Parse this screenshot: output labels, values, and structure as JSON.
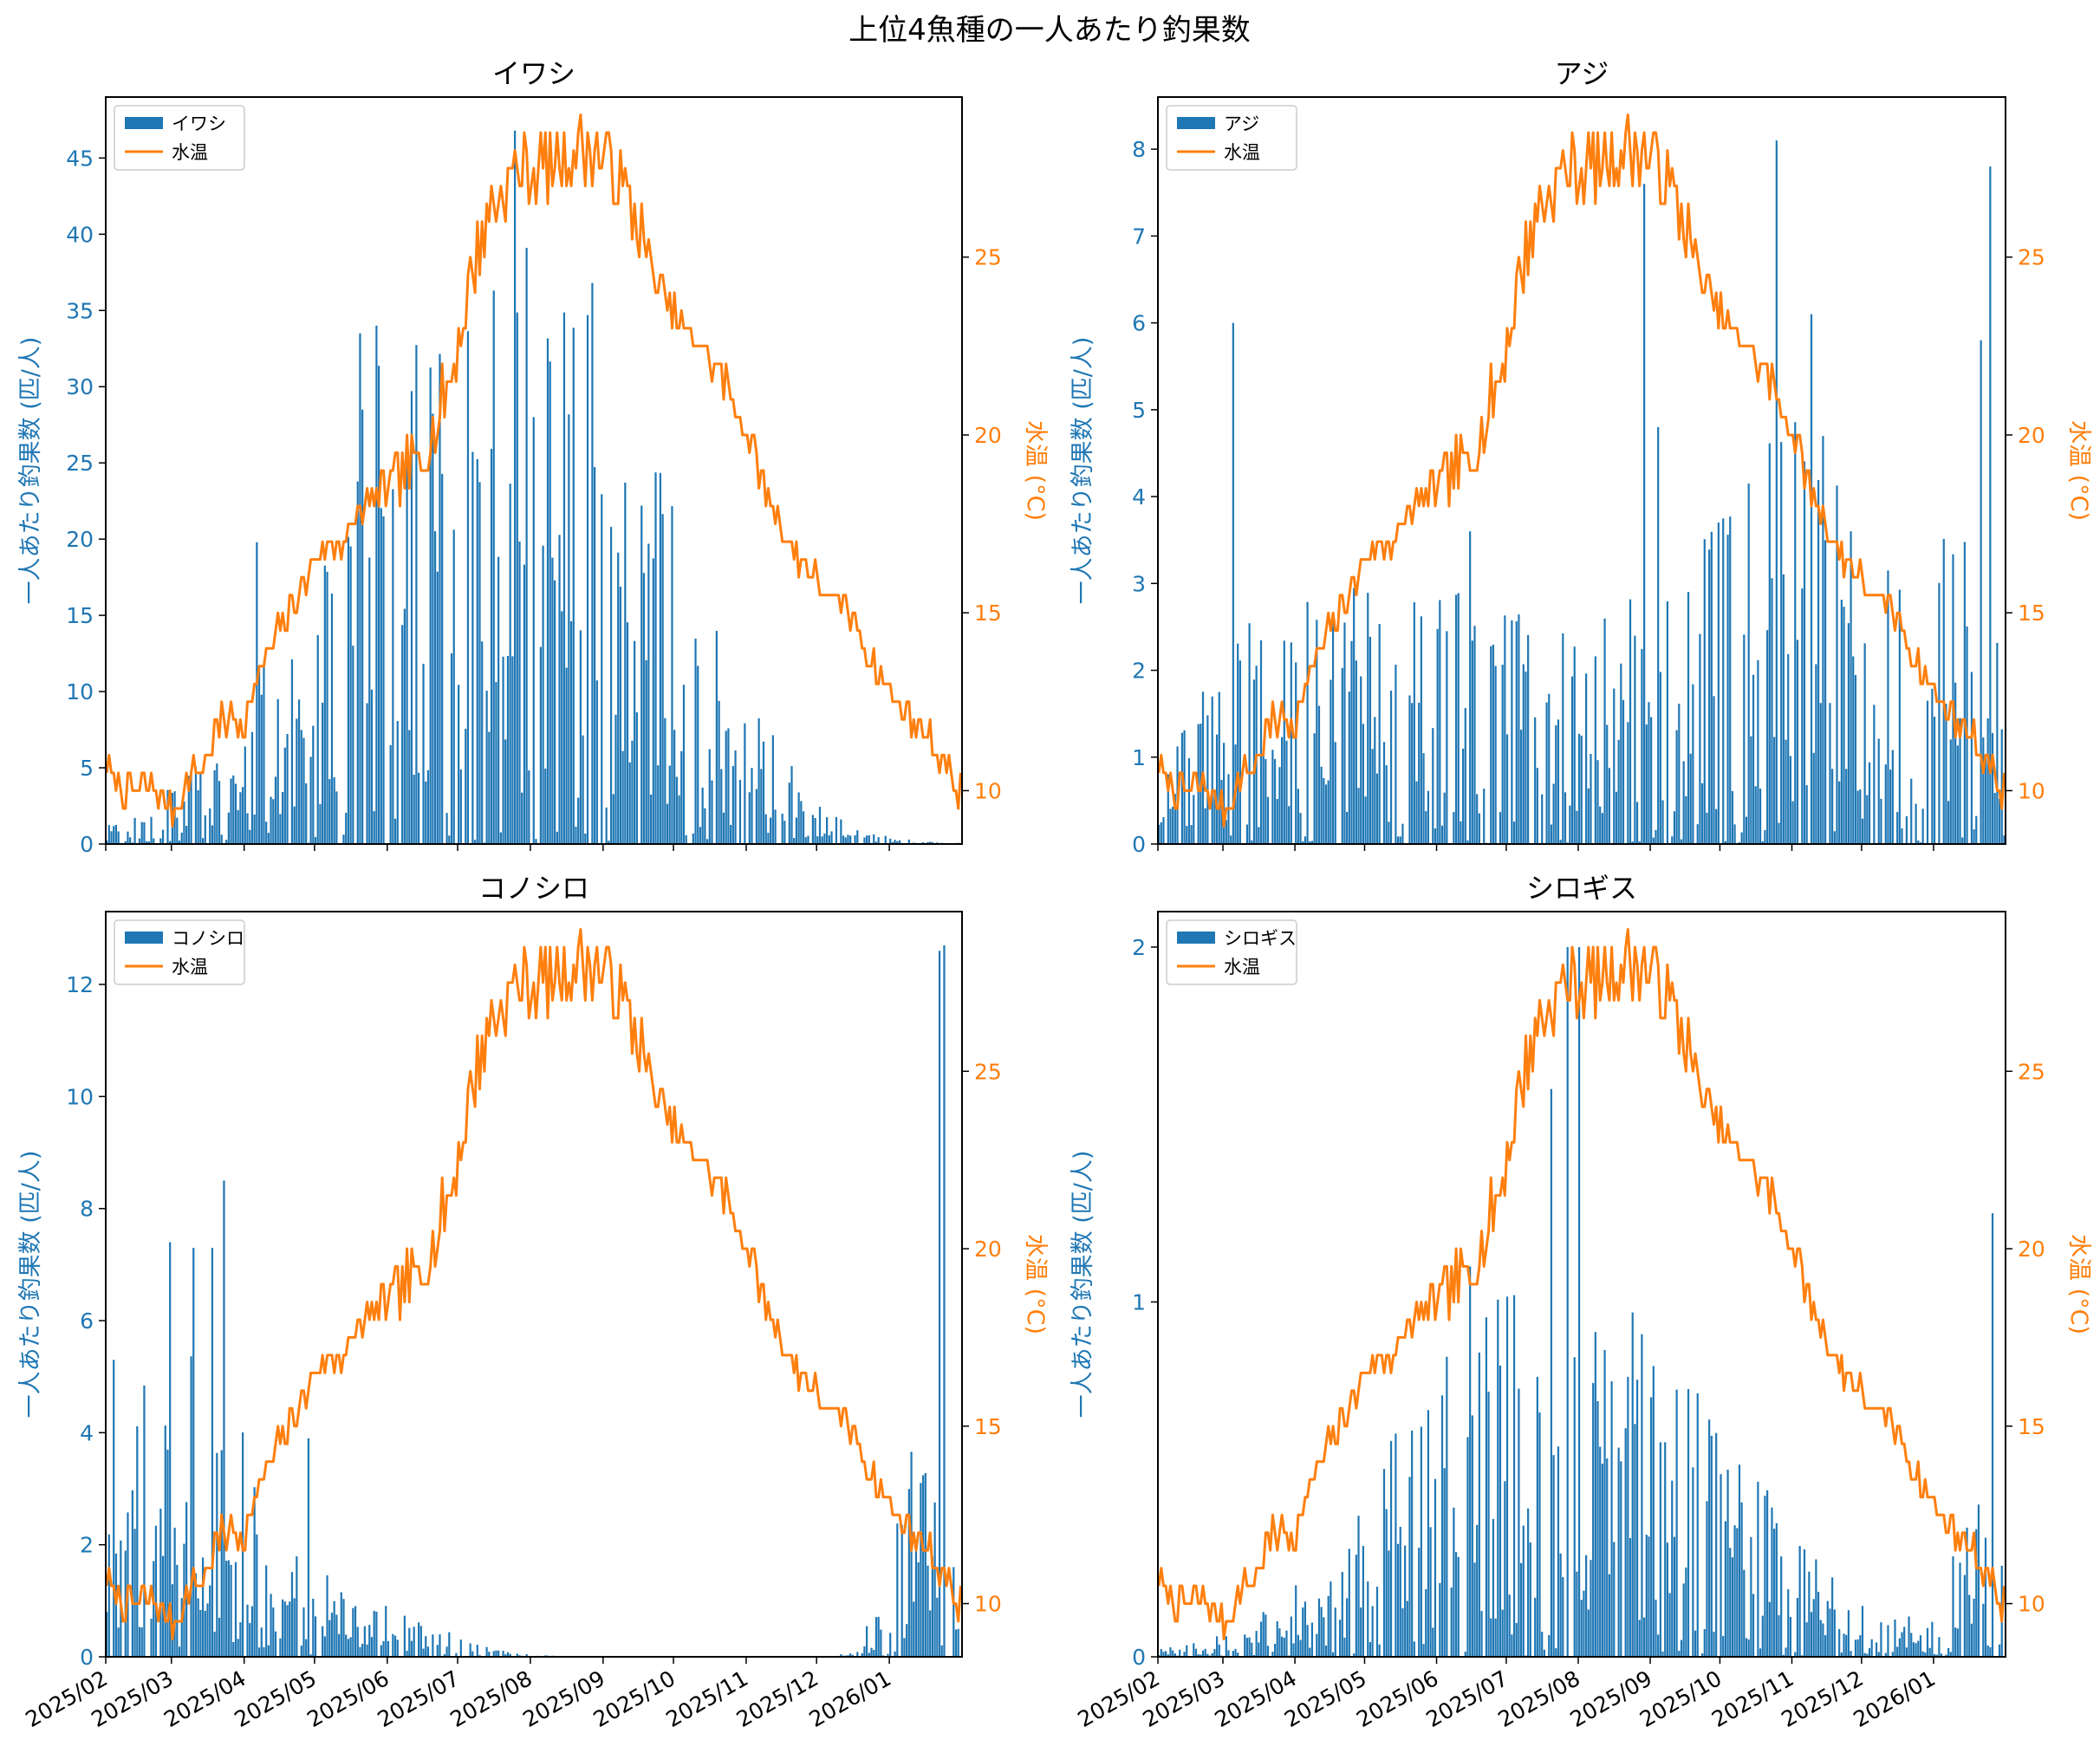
{
  "figure_title": "上位4魚種の一人あたり釣果数",
  "colors": {
    "bar": "#1f77b4",
    "temp": "#ff7f0e"
  },
  "chart_data": [
    {
      "type": "bar+line",
      "title": "イワシ",
      "ylabel": "一人あたり釣果数 (匹/人)",
      "y2label": "水温 (°C)",
      "ylim": [
        0,
        49
      ],
      "y2lim": [
        8.5,
        29.5
      ],
      "yticks": [
        0,
        5,
        10,
        15,
        20,
        25,
        30,
        35,
        40,
        45
      ],
      "y2ticks": [
        10,
        15,
        20,
        25
      ],
      "legend": [
        "イワシ",
        "水温"
      ],
      "season": {
        "warm_peak": 0.42,
        "warm_width": 0.16,
        "warm_amp": 24,
        "cool_peak": 0.62,
        "cool_width": 0.1,
        "cool_amp": 9,
        "jan_amp": 0,
        "spring_amp": 0
      },
      "peaks": [
        [
          "2025/04/06",
          19.8
        ],
        [
          "2025/05/20",
          33.5
        ],
        [
          "2025/05/27",
          34.0
        ],
        [
          "2025/07/25",
          46.8
        ],
        [
          "2025/08/27",
          36.8
        ],
        [
          "2025/09/04",
          20.8
        ],
        [
          "2025/09/20",
          19.7
        ]
      ]
    },
    {
      "type": "bar+line",
      "title": "アジ",
      "ylabel": "一人あたり釣果数 (匹/人)",
      "y2label": "水温 (°C)",
      "ylim": [
        0,
        8.6
      ],
      "y2lim": [
        8.5,
        29.5
      ],
      "yticks": [
        0,
        1,
        2,
        3,
        4,
        5,
        6,
        7,
        8
      ],
      "y2ticks": [
        10,
        15,
        20,
        25
      ],
      "legend": [
        "アジ",
        "水温"
      ],
      "season": {
        "warm_peak": 0.32,
        "warm_width": 0.2,
        "warm_amp": 1.8,
        "cool_peak": 0.76,
        "cool_width": 0.13,
        "cool_amp": 3.0,
        "jan_amp": 1.5,
        "spring_amp": 0.6
      },
      "peaks": [
        [
          "2025/03/05",
          6.0
        ],
        [
          "2025/06/15",
          3.6
        ],
        [
          "2025/08/29",
          7.6
        ],
        [
          "2025/09/04",
          4.8
        ],
        [
          "2025/10/25",
          8.1
        ],
        [
          "2025/11/09",
          6.1
        ],
        [
          "2026/01/21",
          5.8
        ],
        [
          "2026/01/25",
          7.8
        ]
      ]
    },
    {
      "type": "bar+line",
      "title": "コノシロ",
      "ylabel": "一人あたり釣果数 (匹/人)",
      "y2label": "水温 (°C)",
      "ylim": [
        0,
        13.3
      ],
      "y2lim": [
        8.5,
        29.5
      ],
      "yticks": [
        0,
        2,
        4,
        6,
        8,
        10,
        12
      ],
      "y2ticks": [
        10,
        15,
        20,
        25
      ],
      "legend": [
        "コノシロ",
        "水温"
      ],
      "season": {
        "warm_peak": 0.08,
        "warm_width": 0.09,
        "warm_amp": 3.5,
        "cool_peak": 0.3,
        "cool_width": 0.08,
        "cool_amp": 0.6,
        "jan_amp": 3.0,
        "spring_amp": 0.0
      },
      "peaks": [
        [
          "2025/02/04",
          5.3
        ],
        [
          "2025/02/28",
          7.4
        ],
        [
          "2025/03/10",
          7.3
        ],
        [
          "2025/03/18",
          7.3
        ],
        [
          "2025/03/23",
          8.5
        ],
        [
          "2025/04/28",
          3.9
        ],
        [
          "2026/01/22",
          12.6
        ],
        [
          "2026/01/24",
          12.7
        ]
      ]
    },
    {
      "type": "bar+line",
      "title": "シロギス",
      "ylabel": "一人あたり釣果数 (匹/人)",
      "y2label": "水温 (°C)",
      "ylim": [
        0,
        2.1
      ],
      "y2lim": [
        8.5,
        29.5
      ],
      "yticks": [
        0,
        1,
        2
      ],
      "y2ticks": [
        10,
        15,
        20,
        25
      ],
      "legend": [
        "シロギス",
        "水温"
      ],
      "season": {
        "warm_peak": 0.45,
        "warm_width": 0.16,
        "warm_amp": 0.7,
        "cool_peak": 0.7,
        "cool_width": 0.1,
        "cool_amp": 0.15,
        "jan_amp": 0.3,
        "spring_amp": 0.0
      },
      "peaks": [
        [
          "2025/07/27",
          2.0
        ],
        [
          "2025/08/01",
          2.0
        ],
        [
          "2025/07/20",
          1.6
        ],
        [
          "2025/06/15",
          1.1
        ],
        [
          "2026/01/26",
          1.25
        ]
      ]
    }
  ],
  "xaxis": {
    "start": "2025/02/01",
    "end": "2026/01/31",
    "tick_labels": [
      "2025/02",
      "2025/03",
      "2025/04",
      "2025/05",
      "2025/06",
      "2025/07",
      "2025/08",
      "2025/09",
      "2025/10",
      "2025/11",
      "2025/12",
      "2026/01"
    ]
  },
  "water_temperature_keypoints": [
    [
      "2025/02/01",
      10.8
    ],
    [
      "2025/02/03",
      10.2
    ],
    [
      "2025/02/20",
      10.0
    ],
    [
      "2025/03/01",
      9.5
    ],
    [
      "2025/03/08",
      10.3
    ],
    [
      "2025/03/15",
      10.8
    ],
    [
      "2025/03/22",
      12.0
    ],
    [
      "2025/04/01",
      12.0
    ],
    [
      "2025/04/10",
      13.8
    ],
    [
      "2025/04/20",
      15.0
    ],
    [
      "2025/05/01",
      16.5
    ],
    [
      "2025/05/12",
      17.0
    ],
    [
      "2025/05/22",
      18.0
    ],
    [
      "2025/06/01",
      18.5
    ],
    [
      "2025/06/12",
      19.0
    ],
    [
      "2025/06/22",
      20.5
    ],
    [
      "2025/07/01",
      22.5
    ],
    [
      "2025/07/06",
      24.5
    ],
    [
      "2025/07/15",
      26.5
    ],
    [
      "2025/07/25",
      27.3
    ],
    [
      "2025/08/01",
      27.5
    ],
    [
      "2025/08/12",
      27.8
    ],
    [
      "2025/08/25",
      28.0
    ],
    [
      "2025/09/05",
      27.5
    ],
    [
      "2025/09/15",
      26.0
    ],
    [
      "2025/09/25",
      24.0
    ],
    [
      "2025/10/05",
      23.0
    ],
    [
      "2025/10/15",
      22.3
    ],
    [
      "2025/10/25",
      21.2
    ],
    [
      "2025/11/05",
      19.2
    ],
    [
      "2025/11/15",
      17.5
    ],
    [
      "2025/11/25",
      16.3
    ],
    [
      "2025/12/05",
      15.5
    ],
    [
      "2025/12/15",
      15.0
    ],
    [
      "2025/12/25",
      13.5
    ],
    [
      "2026/01/05",
      12.3
    ],
    [
      "2026/01/15",
      11.8
    ],
    [
      "2026/01/22",
      11.0
    ],
    [
      "2026/01/31",
      10.0
    ]
  ]
}
